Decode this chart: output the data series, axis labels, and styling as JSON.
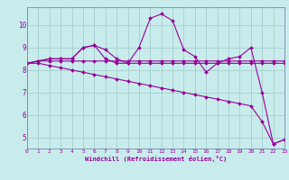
{
  "title": "",
  "xlabel": "Windchill (Refroidissement éolien,°C)",
  "ylabel": "",
  "background_color": "#c8ecec",
  "plot_bg_color": "#c8ecec",
  "grid_color": "#a0c8c8",
  "line_color": "#990099",
  "spine_color": "#7070a0",
  "xlim": [
    0,
    23
  ],
  "ylim": [
    4.5,
    10.8
  ],
  "yticks": [
    5,
    6,
    7,
    8,
    9,
    10
  ],
  "xtick_labels": [
    "0",
    "1",
    "2",
    "3",
    "4",
    "5",
    "6",
    "7",
    "8",
    "9",
    "10",
    "11",
    "12",
    "13",
    "14",
    "15",
    "16",
    "17",
    "18",
    "19",
    "20",
    "21",
    "2223"
  ],
  "series": [
    [
      8.3,
      8.4,
      8.5,
      8.5,
      8.5,
      9.0,
      9.1,
      8.9,
      8.5,
      8.3,
      9.0,
      10.3,
      10.5,
      10.2,
      8.9,
      8.6,
      7.9,
      8.3,
      8.5,
      8.6,
      9.0,
      7.0,
      4.7,
      4.9
    ],
    [
      8.3,
      8.4,
      8.5,
      8.5,
      8.5,
      9.0,
      9.1,
      8.5,
      8.3,
      8.3,
      8.3,
      8.3,
      8.3,
      8.3,
      8.3,
      8.3,
      8.3,
      8.3,
      8.3,
      8.3,
      8.3,
      8.3,
      8.3,
      8.3
    ],
    [
      8.3,
      8.4,
      8.4,
      8.4,
      8.4,
      8.4,
      8.4,
      8.4,
      8.4,
      8.4,
      8.4,
      8.4,
      8.4,
      8.4,
      8.4,
      8.4,
      8.4,
      8.4,
      8.4,
      8.4,
      8.4,
      8.4,
      8.4,
      8.4
    ],
    [
      8.3,
      8.3,
      8.2,
      8.1,
      8.0,
      7.9,
      7.8,
      7.7,
      7.6,
      7.5,
      7.4,
      7.3,
      7.2,
      7.1,
      7.0,
      6.9,
      6.8,
      6.7,
      6.6,
      6.5,
      6.4,
      5.7,
      4.7,
      4.9
    ]
  ]
}
